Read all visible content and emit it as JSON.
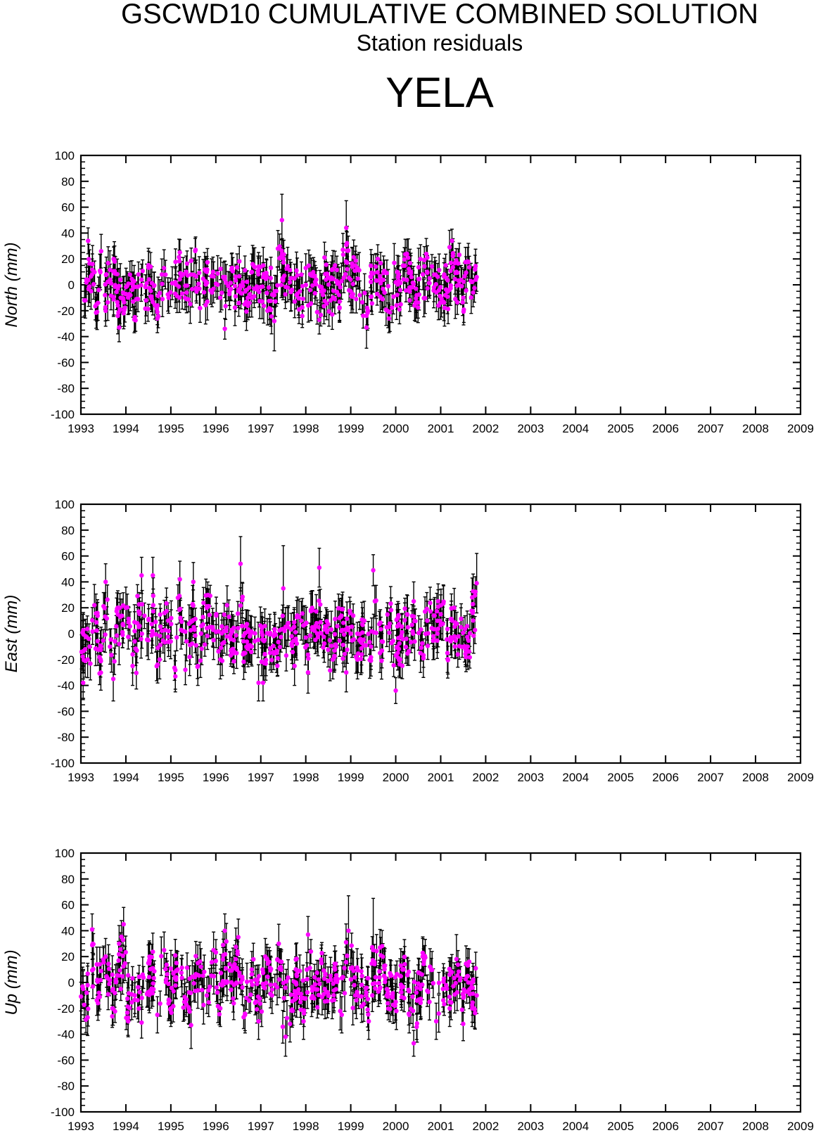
{
  "header": {
    "title": "GSCWD10 CUMULATIVE COMBINED SOLUTION",
    "subtitle": "Station residuals",
    "station": "YELA"
  },
  "colors": {
    "point": "#ff00ff",
    "error_bar": "#000000",
    "frame": "#000000"
  },
  "chart_data": [
    {
      "type": "scatter",
      "title": "",
      "xlabel": "",
      "ylabel": "North (mm)",
      "xlim": [
        1993,
        2009
      ],
      "ylim": [
        -100,
        100
      ],
      "xticks": [
        "1993",
        "1994",
        "1995",
        "1996",
        "1997",
        "1998",
        "1999",
        "2000",
        "2001",
        "2002",
        "2003",
        "2004",
        "2005",
        "2006",
        "2007",
        "2008",
        "2009"
      ],
      "yticks": [
        "100",
        "80",
        "60",
        "40",
        "20",
        "0",
        "-20",
        "-40",
        "-60",
        "-80",
        "-100"
      ],
      "error_bars": true,
      "data_range": [
        1993.0,
        2001.8
      ],
      "points": [
        {
          "x": 1993.08,
          "y": -12,
          "err": 12
        },
        {
          "x": 1993.16,
          "y": 34,
          "err": 10
        },
        {
          "x": 1993.25,
          "y": 8,
          "err": 12
        },
        {
          "x": 1993.35,
          "y": -15,
          "err": 13
        },
        {
          "x": 1993.45,
          "y": 26,
          "err": 13
        },
        {
          "x": 1993.55,
          "y": -20,
          "err": 12
        },
        {
          "x": 1993.65,
          "y": 4,
          "err": 12
        },
        {
          "x": 1993.75,
          "y": 18,
          "err": 12
        },
        {
          "x": 1993.85,
          "y": -33,
          "err": 11
        },
        {
          "x": 1993.95,
          "y": -22,
          "err": 12
        },
        {
          "x": 1994.1,
          "y": -8,
          "err": 12
        },
        {
          "x": 1994.2,
          "y": -25,
          "err": 11
        },
        {
          "x": 1994.35,
          "y": 4,
          "err": 12
        },
        {
          "x": 1994.45,
          "y": -12,
          "err": 12
        },
        {
          "x": 1994.55,
          "y": 14,
          "err": 11
        },
        {
          "x": 1994.7,
          "y": -26,
          "err": 11
        },
        {
          "x": 1994.8,
          "y": 8,
          "err": 12
        },
        {
          "x": 1994.95,
          "y": -10,
          "err": 12
        },
        {
          "x": 1995.1,
          "y": 2,
          "err": 11
        },
        {
          "x": 1995.2,
          "y": 25,
          "err": 10
        },
        {
          "x": 1995.35,
          "y": -6,
          "err": 11
        },
        {
          "x": 1995.45,
          "y": 8,
          "err": 11
        },
        {
          "x": 1995.55,
          "y": 27,
          "err": 10
        },
        {
          "x": 1995.65,
          "y": -18,
          "err": 11
        },
        {
          "x": 1995.8,
          "y": 10,
          "err": 12
        },
        {
          "x": 1995.95,
          "y": -3,
          "err": 11
        },
        {
          "x": 1996.1,
          "y": -10,
          "err": 11
        },
        {
          "x": 1996.2,
          "y": -34,
          "err": 8
        },
        {
          "x": 1996.35,
          "y": 12,
          "err": 12
        },
        {
          "x": 1996.5,
          "y": -5,
          "err": 11
        },
        {
          "x": 1996.6,
          "y": 2,
          "err": 11
        },
        {
          "x": 1996.75,
          "y": -14,
          "err": 11
        },
        {
          "x": 1996.85,
          "y": -3,
          "err": 11
        },
        {
          "x": 1996.95,
          "y": 14,
          "err": 11
        },
        {
          "x": 1997.05,
          "y": 6,
          "err": 11
        },
        {
          "x": 1997.15,
          "y": -20,
          "err": 11
        },
        {
          "x": 1997.3,
          "y": -28,
          "err": 23
        },
        {
          "x": 1997.38,
          "y": 28,
          "err": 14
        },
        {
          "x": 1997.47,
          "y": 50,
          "err": 20
        },
        {
          "x": 1997.6,
          "y": -2,
          "err": 11
        },
        {
          "x": 1997.75,
          "y": 5,
          "err": 11
        },
        {
          "x": 1997.85,
          "y": -19,
          "err": 11
        },
        {
          "x": 1998.0,
          "y": 13,
          "err": 11
        },
        {
          "x": 1998.1,
          "y": -4,
          "err": 11
        },
        {
          "x": 1998.2,
          "y": 7,
          "err": 11
        },
        {
          "x": 1998.3,
          "y": -27,
          "err": 11
        },
        {
          "x": 1998.45,
          "y": 4,
          "err": 11
        },
        {
          "x": 1998.55,
          "y": -12,
          "err": 11
        },
        {
          "x": 1998.65,
          "y": 15,
          "err": 11
        },
        {
          "x": 1998.75,
          "y": -18,
          "err": 11
        },
        {
          "x": 1998.9,
          "y": 44,
          "err": 21
        },
        {
          "x": 1999.0,
          "y": -5,
          "err": 11
        },
        {
          "x": 1999.1,
          "y": 15,
          "err": 11
        },
        {
          "x": 1999.2,
          "y": -8,
          "err": 11
        },
        {
          "x": 1999.35,
          "y": -33,
          "err": 16
        },
        {
          "x": 1999.45,
          "y": 6,
          "err": 11
        },
        {
          "x": 1999.6,
          "y": 20,
          "err": 11
        },
        {
          "x": 1999.75,
          "y": -6,
          "err": 11
        },
        {
          "x": 1999.85,
          "y": -26,
          "err": 11
        },
        {
          "x": 2000.0,
          "y": 2,
          "err": 11
        },
        {
          "x": 2000.1,
          "y": -4,
          "err": 11
        },
        {
          "x": 2000.25,
          "y": 24,
          "err": 11
        },
        {
          "x": 2000.35,
          "y": 6,
          "err": 11
        },
        {
          "x": 2000.45,
          "y": -3,
          "err": 11
        },
        {
          "x": 2000.55,
          "y": 20,
          "err": 11
        },
        {
          "x": 2000.7,
          "y": 10,
          "err": 11
        },
        {
          "x": 2000.85,
          "y": -2,
          "err": 11
        },
        {
          "x": 2000.95,
          "y": -16,
          "err": 11
        },
        {
          "x": 2001.1,
          "y": -8,
          "err": 11
        },
        {
          "x": 2001.25,
          "y": 34,
          "err": 9
        },
        {
          "x": 2001.35,
          "y": 10,
          "err": 11
        },
        {
          "x": 2001.5,
          "y": -10,
          "err": 11
        },
        {
          "x": 2001.6,
          "y": 18,
          "err": 11
        },
        {
          "x": 2001.72,
          "y": -6,
          "err": 11
        },
        {
          "x": 2001.8,
          "y": 6,
          "err": 11
        }
      ]
    },
    {
      "type": "scatter",
      "title": "",
      "xlabel": "",
      "ylabel": "East (mm)",
      "xlim": [
        1993,
        2009
      ],
      "ylim": [
        -100,
        100
      ],
      "xticks": [
        "1993",
        "1994",
        "1995",
        "1996",
        "1997",
        "1998",
        "1999",
        "2000",
        "2001",
        "2002",
        "2003",
        "2004",
        "2005",
        "2006",
        "2007",
        "2008",
        "2009"
      ],
      "yticks": [
        "100",
        "80",
        "60",
        "40",
        "20",
        "0",
        "-20",
        "-40",
        "-60",
        "-80",
        "-100"
      ],
      "error_bars": true,
      "data_range": [
        1993.0,
        2001.8
      ],
      "points": [
        {
          "x": 1993.05,
          "y": -38,
          "err": 13
        },
        {
          "x": 1993.15,
          "y": -20,
          "err": 14
        },
        {
          "x": 1993.3,
          "y": 22,
          "err": 16
        },
        {
          "x": 1993.45,
          "y": -10,
          "err": 15
        },
        {
          "x": 1993.55,
          "y": 40,
          "err": 14
        },
        {
          "x": 1993.72,
          "y": -35,
          "err": 17
        },
        {
          "x": 1993.85,
          "y": -8,
          "err": 16
        },
        {
          "x": 1994.0,
          "y": 20,
          "err": 16
        },
        {
          "x": 1994.15,
          "y": -25,
          "err": 15
        },
        {
          "x": 1994.35,
          "y": 45,
          "err": 14
        },
        {
          "x": 1994.5,
          "y": -5,
          "err": 15
        },
        {
          "x": 1994.6,
          "y": 45,
          "err": 14
        },
        {
          "x": 1994.75,
          "y": -20,
          "err": 15
        },
        {
          "x": 1994.95,
          "y": 2,
          "err": 15
        },
        {
          "x": 1995.1,
          "y": -33,
          "err": 12
        },
        {
          "x": 1995.2,
          "y": 42,
          "err": 14
        },
        {
          "x": 1995.35,
          "y": -6,
          "err": 15
        },
        {
          "x": 1995.5,
          "y": 40,
          "err": 15
        },
        {
          "x": 1995.6,
          "y": -25,
          "err": 15
        },
        {
          "x": 1995.8,
          "y": 20,
          "err": 15
        },
        {
          "x": 1995.95,
          "y": -5,
          "err": 15
        },
        {
          "x": 1996.1,
          "y": -20,
          "err": 15
        },
        {
          "x": 1996.25,
          "y": 22,
          "err": 15
        },
        {
          "x": 1996.4,
          "y": -5,
          "err": 15
        },
        {
          "x": 1996.55,
          "y": 54,
          "err": 21
        },
        {
          "x": 1996.65,
          "y": -15,
          "err": 15
        },
        {
          "x": 1996.8,
          "y": -10,
          "err": 15
        },
        {
          "x": 1996.95,
          "y": -38,
          "err": 14
        },
        {
          "x": 1997.05,
          "y": -38,
          "err": 14
        },
        {
          "x": 1997.2,
          "y": 0,
          "err": 15
        },
        {
          "x": 1997.35,
          "y": -15,
          "err": 15
        },
        {
          "x": 1997.5,
          "y": 35,
          "err": 33
        },
        {
          "x": 1997.6,
          "y": 5,
          "err": 15
        },
        {
          "x": 1997.75,
          "y": -25,
          "err": 15
        },
        {
          "x": 1997.9,
          "y": 10,
          "err": 15
        },
        {
          "x": 1998.05,
          "y": -30,
          "err": 16
        },
        {
          "x": 1998.15,
          "y": 18,
          "err": 15
        },
        {
          "x": 1998.3,
          "y": 51,
          "err": 15
        },
        {
          "x": 1998.45,
          "y": 5,
          "err": 15
        },
        {
          "x": 1998.6,
          "y": -20,
          "err": 15
        },
        {
          "x": 1998.75,
          "y": 12,
          "err": 15
        },
        {
          "x": 1998.9,
          "y": -30,
          "err": 15
        },
        {
          "x": 1999.0,
          "y": 0,
          "err": 15
        },
        {
          "x": 1999.15,
          "y": -20,
          "err": 15
        },
        {
          "x": 1999.3,
          "y": 10,
          "err": 15
        },
        {
          "x": 1999.45,
          "y": -10,
          "err": 15
        },
        {
          "x": 1999.5,
          "y": 49,
          "err": 12
        },
        {
          "x": 1999.65,
          "y": -15,
          "err": 15
        },
        {
          "x": 1999.8,
          "y": 5,
          "err": 15
        },
        {
          "x": 2000.0,
          "y": -44,
          "err": 10
        },
        {
          "x": 2000.1,
          "y": -20,
          "err": 14
        },
        {
          "x": 2000.25,
          "y": 15,
          "err": 15
        },
        {
          "x": 2000.4,
          "y": 25,
          "err": 15
        },
        {
          "x": 2000.55,
          "y": -15,
          "err": 15
        },
        {
          "x": 2000.7,
          "y": 10,
          "err": 15
        },
        {
          "x": 2000.85,
          "y": -5,
          "err": 15
        },
        {
          "x": 2001.0,
          "y": 15,
          "err": 15
        },
        {
          "x": 2001.15,
          "y": -15,
          "err": 15
        },
        {
          "x": 2001.3,
          "y": 20,
          "err": 15
        },
        {
          "x": 2001.45,
          "y": 5,
          "err": 15
        },
        {
          "x": 2001.6,
          "y": -10,
          "err": 15
        },
        {
          "x": 2001.7,
          "y": 28,
          "err": 15
        },
        {
          "x": 2001.8,
          "y": 39,
          "err": 23
        }
      ]
    },
    {
      "type": "scatter",
      "title": "",
      "xlabel": "",
      "ylabel": "Up (mm)",
      "xlim": [
        1993,
        2009
      ],
      "ylim": [
        -100,
        100
      ],
      "xticks": [
        "1993",
        "1994",
        "1995",
        "1996",
        "1997",
        "1998",
        "1999",
        "2000",
        "2001",
        "2002",
        "2003",
        "2004",
        "2005",
        "2006",
        "2007",
        "2008",
        "2009"
      ],
      "yticks": [
        "100",
        "80",
        "60",
        "40",
        "20",
        "0",
        "-20",
        "-40",
        "-60",
        "-80",
        "-100"
      ],
      "error_bars": true,
      "data_range": [
        1993.0,
        2001.8
      ],
      "points": [
        {
          "x": 1993.05,
          "y": -5,
          "err": 14
        },
        {
          "x": 1993.15,
          "y": -27,
          "err": 14
        },
        {
          "x": 1993.25,
          "y": 41,
          "err": 12
        },
        {
          "x": 1993.4,
          "y": -8,
          "err": 14
        },
        {
          "x": 1993.55,
          "y": 20,
          "err": 14
        },
        {
          "x": 1993.7,
          "y": -20,
          "err": 13
        },
        {
          "x": 1993.85,
          "y": 30,
          "err": 14
        },
        {
          "x": 1993.95,
          "y": 45,
          "err": 13
        },
        {
          "x": 1994.05,
          "y": -30,
          "err": 12
        },
        {
          "x": 1994.2,
          "y": -10,
          "err": 14
        },
        {
          "x": 1994.35,
          "y": -31,
          "err": 12
        },
        {
          "x": 1994.5,
          "y": 15,
          "err": 14
        },
        {
          "x": 1994.7,
          "y": -25,
          "err": 14
        },
        {
          "x": 1994.85,
          "y": 25,
          "err": 14
        },
        {
          "x": 1995.0,
          "y": -20,
          "err": 14
        },
        {
          "x": 1995.15,
          "y": 10,
          "err": 14
        },
        {
          "x": 1995.3,
          "y": -15,
          "err": 14
        },
        {
          "x": 1995.45,
          "y": -33,
          "err": 18
        },
        {
          "x": 1995.6,
          "y": 15,
          "err": 14
        },
        {
          "x": 1995.8,
          "y": -10,
          "err": 14
        },
        {
          "x": 1995.95,
          "y": 25,
          "err": 14
        },
        {
          "x": 1996.1,
          "y": -20,
          "err": 14
        },
        {
          "x": 1996.2,
          "y": 40,
          "err": 13
        },
        {
          "x": 1996.35,
          "y": 0,
          "err": 14
        },
        {
          "x": 1996.5,
          "y": 35,
          "err": 14
        },
        {
          "x": 1996.65,
          "y": -25,
          "err": 14
        },
        {
          "x": 1996.8,
          "y": 10,
          "err": 14
        },
        {
          "x": 1996.95,
          "y": -30,
          "err": 14
        },
        {
          "x": 1997.1,
          "y": 20,
          "err": 14
        },
        {
          "x": 1997.25,
          "y": -10,
          "err": 14
        },
        {
          "x": 1997.4,
          "y": 30,
          "err": 15
        },
        {
          "x": 1997.55,
          "y": -42,
          "err": 15
        },
        {
          "x": 1997.65,
          "y": -32,
          "err": 14
        },
        {
          "x": 1997.8,
          "y": 5,
          "err": 14
        },
        {
          "x": 1997.95,
          "y": -30,
          "err": 14
        },
        {
          "x": 1998.05,
          "y": 37,
          "err": 14
        },
        {
          "x": 1998.2,
          "y": -5,
          "err": 14
        },
        {
          "x": 1998.35,
          "y": 15,
          "err": 14
        },
        {
          "x": 1998.5,
          "y": -10,
          "err": 14
        },
        {
          "x": 1998.65,
          "y": 10,
          "err": 14
        },
        {
          "x": 1998.8,
          "y": -25,
          "err": 14
        },
        {
          "x": 1998.95,
          "y": 40,
          "err": 27
        },
        {
          "x": 1999.1,
          "y": -10,
          "err": 14
        },
        {
          "x": 1999.25,
          "y": 5,
          "err": 14
        },
        {
          "x": 1999.4,
          "y": -30,
          "err": 14
        },
        {
          "x": 1999.5,
          "y": 25,
          "err": 40
        },
        {
          "x": 1999.65,
          "y": 27,
          "err": 14
        },
        {
          "x": 1999.8,
          "y": -10,
          "err": 14
        },
        {
          "x": 2000.0,
          "y": -15,
          "err": 14
        },
        {
          "x": 2000.15,
          "y": 10,
          "err": 14
        },
        {
          "x": 2000.3,
          "y": -25,
          "err": 14
        },
        {
          "x": 2000.4,
          "y": -47,
          "err": 10
        },
        {
          "x": 2000.55,
          "y": -5,
          "err": 14
        },
        {
          "x": 2000.6,
          "y": 20,
          "err": 14
        },
        {
          "x": 2000.75,
          "y": -15,
          "err": 14
        },
        {
          "x": 2000.9,
          "y": -30,
          "err": 14
        },
        {
          "x": 2001.05,
          "y": -5,
          "err": 14
        },
        {
          "x": 2001.2,
          "y": -20,
          "err": 14
        },
        {
          "x": 2001.35,
          "y": 18,
          "err": 19
        },
        {
          "x": 2001.5,
          "y": -32,
          "err": 13
        },
        {
          "x": 2001.6,
          "y": 5,
          "err": 14
        },
        {
          "x": 2001.7,
          "y": -20,
          "err": 14
        },
        {
          "x": 2001.8,
          "y": -10,
          "err": 14
        }
      ]
    }
  ]
}
